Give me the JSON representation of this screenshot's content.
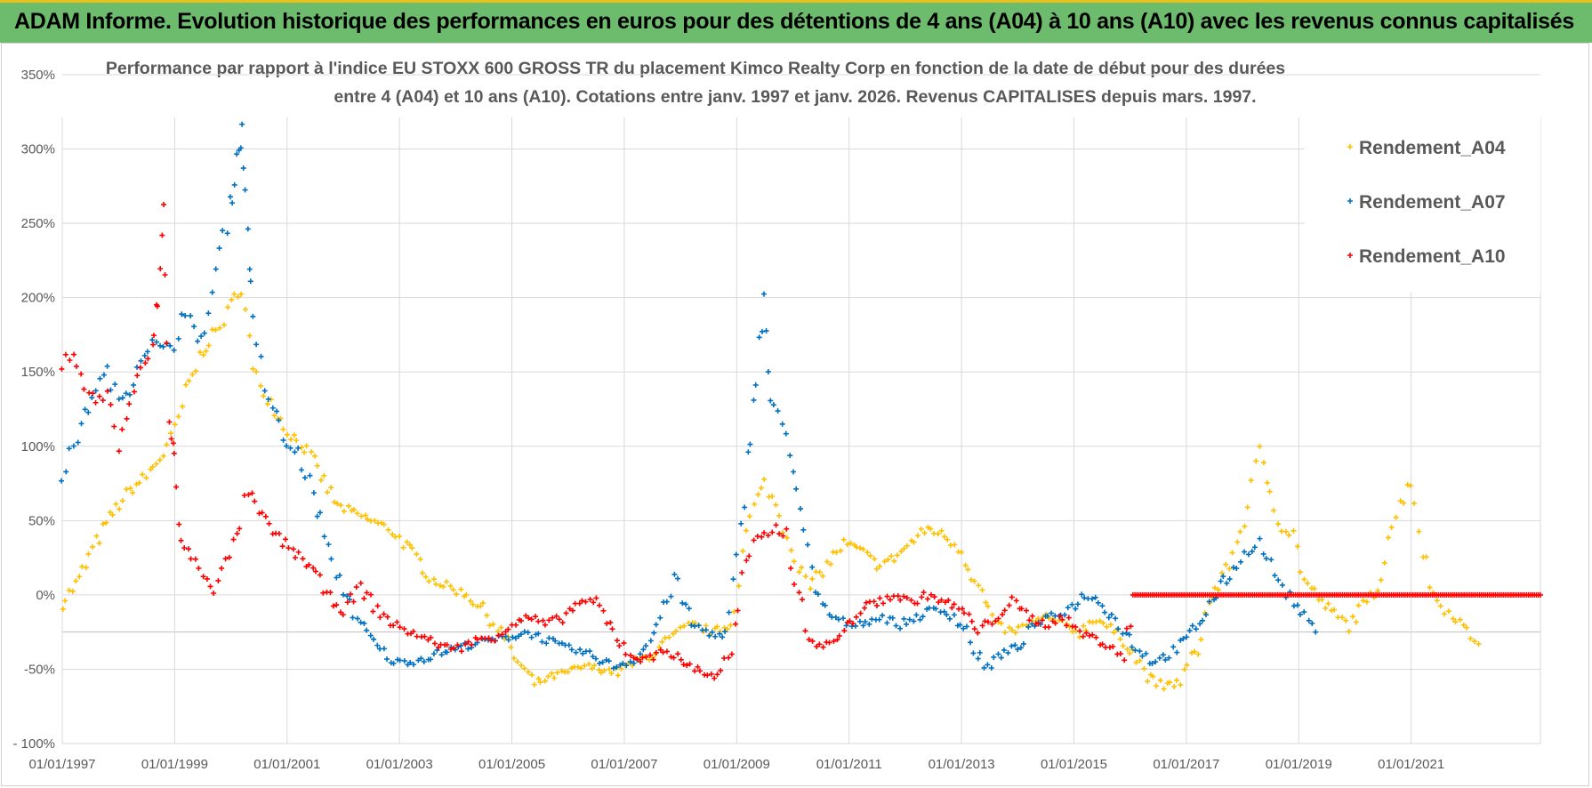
{
  "banner": {
    "title": "ADAM Informe. Evolution historique des performances en euros pour des détentions de 4 ans (A04) à 10 ans (A10) avec les revenus connus capitalisés"
  },
  "colors": {
    "banner_bg": "#6dbb6d",
    "banner_accent": "#e8c21a",
    "A04": "#FFC000",
    "A07": "#0070C0",
    "A10": "#FF0000",
    "grid": "#d9d9d9"
  },
  "chart_data": {
    "type": "scatter",
    "title_lines": [
      "Performance par rapport à l'indice EU STOXX 600 GROSS TR  du placement Kimco Realty Corp en fonction de la date de début pour des durées",
      "entre 4 (A04) et 10 ans (A10). Cotations entre janv. 1997 et janv. 2026. Revenus CAPITALISES depuis mars. 1997."
    ],
    "xlabel": "",
    "ylabel": "",
    "xlim": [
      1997.0,
      2023.3
    ],
    "ylim": [
      -100,
      350
    ],
    "y_ticks": [
      -100,
      -50,
      0,
      50,
      100,
      150,
      200,
      250,
      300,
      350
    ],
    "y_tick_labels": [
      "- 100%",
      "-50%",
      "0%",
      "50%",
      "100%",
      "150%",
      "200%",
      "250%",
      "300%",
      "350%"
    ],
    "x_ticks": [
      1997,
      1999,
      2001,
      2003,
      2005,
      2007,
      2009,
      2011,
      2013,
      2015,
      2017,
      2019,
      2021
    ],
    "x_tick_labels": [
      "01/01/1997",
      "01/01/1999",
      "01/01/2001",
      "01/01/2003",
      "01/01/2005",
      "01/01/2007",
      "01/01/2009",
      "01/01/2011",
      "01/01/2013",
      "01/01/2015",
      "01/01/2017",
      "01/01/2019",
      "01/01/2021"
    ],
    "legend_position": "top-right",
    "series": [
      {
        "name": "Rendement_A04",
        "color": "#FFC000",
        "points": [
          [
            1997.0,
            -5
          ],
          [
            1997.3,
            10
          ],
          [
            1997.6,
            35
          ],
          [
            1997.9,
            55
          ],
          [
            1998.2,
            70
          ],
          [
            1998.5,
            80
          ],
          [
            1998.8,
            95
          ],
          [
            1999.0,
            110
          ],
          [
            1999.2,
            135
          ],
          [
            1999.5,
            165
          ],
          [
            1999.8,
            180
          ],
          [
            2000.0,
            195
          ],
          [
            2000.2,
            210
          ],
          [
            2000.4,
            150
          ],
          [
            2000.7,
            130
          ],
          [
            2001.0,
            110
          ],
          [
            2001.3,
            100
          ],
          [
            2001.6,
            80
          ],
          [
            2001.9,
            60
          ],
          [
            2002.2,
            55
          ],
          [
            2002.5,
            50
          ],
          [
            2002.8,
            45
          ],
          [
            2003.0,
            38
          ],
          [
            2003.3,
            25
          ],
          [
            2003.6,
            10
          ],
          [
            2003.9,
            5
          ],
          [
            2004.2,
            0
          ],
          [
            2004.5,
            -10
          ],
          [
            2004.8,
            -25
          ],
          [
            2005.1,
            -45
          ],
          [
            2005.4,
            -60
          ],
          [
            2005.7,
            -55
          ],
          [
            2006.0,
            -52
          ],
          [
            2006.3,
            -48
          ],
          [
            2006.6,
            -50
          ],
          [
            2006.9,
            -52
          ],
          [
            2007.2,
            -45
          ],
          [
            2007.5,
            -40
          ],
          [
            2007.8,
            -30
          ],
          [
            2008.2,
            -20
          ],
          [
            2008.6,
            -25
          ],
          [
            2008.9,
            -20
          ],
          [
            2009.1,
            30
          ],
          [
            2009.3,
            60
          ],
          [
            2009.5,
            75
          ],
          [
            2009.7,
            60
          ],
          [
            2009.9,
            40
          ],
          [
            2010.1,
            20
          ],
          [
            2010.3,
            5
          ],
          [
            2010.6,
            20
          ],
          [
            2010.9,
            35
          ],
          [
            2011.2,
            30
          ],
          [
            2011.5,
            20
          ],
          [
            2011.8,
            25
          ],
          [
            2012.1,
            35
          ],
          [
            2012.4,
            45
          ],
          [
            2012.7,
            40
          ],
          [
            2013.0,
            30
          ],
          [
            2013.3,
            5
          ],
          [
            2013.6,
            -20
          ],
          [
            2013.9,
            -25
          ],
          [
            2014.2,
            -20
          ],
          [
            2014.5,
            -15
          ],
          [
            2014.8,
            -20
          ],
          [
            2015.1,
            -25
          ],
          [
            2015.4,
            -15
          ],
          [
            2015.7,
            -25
          ],
          [
            2016.0,
            -35
          ],
          [
            2016.3,
            -55
          ],
          [
            2016.6,
            -62
          ],
          [
            2016.9,
            -58
          ],
          [
            2017.2,
            -35
          ],
          [
            2017.4,
            -5
          ],
          [
            2017.7,
            15
          ],
          [
            2017.9,
            35
          ],
          [
            2018.1,
            60
          ],
          [
            2018.3,
            95
          ],
          [
            2018.5,
            70
          ],
          [
            2018.7,
            45
          ],
          [
            2018.9,
            40
          ],
          [
            2019.1,
            10
          ],
          [
            2019.4,
            -5
          ],
          [
            2019.7,
            -15
          ],
          [
            2019.9,
            -20
          ],
          [
            2020.2,
            -5
          ],
          [
            2020.4,
            5
          ],
          [
            2020.6,
            40
          ],
          [
            2020.8,
            60
          ],
          [
            2021.0,
            80
          ],
          [
            2021.2,
            30
          ],
          [
            2021.4,
            0
          ],
          [
            2021.6,
            -10
          ],
          [
            2021.8,
            -15
          ],
          [
            2022.0,
            -25
          ],
          [
            2022.2,
            -33
          ]
        ]
      },
      {
        "name": "Rendement_A07",
        "color": "#0070C0",
        "points": [
          [
            1997.0,
            80
          ],
          [
            1997.2,
            100
          ],
          [
            1997.4,
            120
          ],
          [
            1997.6,
            140
          ],
          [
            1997.8,
            150
          ],
          [
            1998.0,
            130
          ],
          [
            1998.2,
            140
          ],
          [
            1998.4,
            160
          ],
          [
            1998.6,
            170
          ],
          [
            1998.8,
            165
          ],
          [
            1999.0,
            170
          ],
          [
            1999.2,
            195
          ],
          [
            1999.4,
            165
          ],
          [
            1999.6,
            190
          ],
          [
            1999.8,
            230
          ],
          [
            2000.0,
            260
          ],
          [
            2000.1,
            295
          ],
          [
            2000.2,
            310
          ],
          [
            2000.3,
            250
          ],
          [
            2000.4,
            180
          ],
          [
            2000.6,
            140
          ],
          [
            2000.8,
            120
          ],
          [
            2001.0,
            100
          ],
          [
            2001.2,
            95
          ],
          [
            2001.4,
            75
          ],
          [
            2001.6,
            50
          ],
          [
            2001.8,
            20
          ],
          [
            2002.0,
            5
          ],
          [
            2002.3,
            -20
          ],
          [
            2002.6,
            -35
          ],
          [
            2002.9,
            -45
          ],
          [
            2003.2,
            -45
          ],
          [
            2003.5,
            -42
          ],
          [
            2003.8,
            -38
          ],
          [
            2004.1,
            -35
          ],
          [
            2004.4,
            -32
          ],
          [
            2004.7,
            -30
          ],
          [
            2005.0,
            -28
          ],
          [
            2005.3,
            -25
          ],
          [
            2005.6,
            -30
          ],
          [
            2005.9,
            -35
          ],
          [
            2006.2,
            -38
          ],
          [
            2006.5,
            -42
          ],
          [
            2006.8,
            -48
          ],
          [
            2007.1,
            -45
          ],
          [
            2007.4,
            -35
          ],
          [
            2007.7,
            -10
          ],
          [
            2007.9,
            10
          ],
          [
            2008.2,
            -20
          ],
          [
            2008.5,
            -25
          ],
          [
            2008.8,
            -30
          ],
          [
            2009.0,
            20
          ],
          [
            2009.2,
            90
          ],
          [
            2009.35,
            150
          ],
          [
            2009.5,
            200
          ],
          [
            2009.6,
            130
          ],
          [
            2009.8,
            115
          ],
          [
            2010.0,
            90
          ],
          [
            2010.2,
            40
          ],
          [
            2010.4,
            0
          ],
          [
            2010.7,
            -15
          ],
          [
            2011.0,
            -20
          ],
          [
            2011.3,
            -18
          ],
          [
            2011.6,
            -15
          ],
          [
            2011.9,
            -20
          ],
          [
            2012.2,
            -15
          ],
          [
            2012.5,
            -10
          ],
          [
            2012.8,
            -12
          ],
          [
            2013.1,
            -25
          ],
          [
            2013.4,
            -50
          ],
          [
            2013.7,
            -40
          ],
          [
            2014.0,
            -35
          ],
          [
            2014.3,
            -20
          ],
          [
            2014.6,
            -15
          ],
          [
            2014.9,
            -10
          ],
          [
            2015.2,
            0
          ],
          [
            2015.5,
            -5
          ],
          [
            2015.8,
            -20
          ],
          [
            2016.1,
            -35
          ],
          [
            2016.4,
            -45
          ],
          [
            2016.7,
            -40
          ],
          [
            2017.0,
            -30
          ],
          [
            2017.3,
            -15
          ],
          [
            2017.6,
            5
          ],
          [
            2017.9,
            20
          ],
          [
            2018.1,
            30
          ],
          [
            2018.3,
            35
          ],
          [
            2018.5,
            20
          ],
          [
            2018.7,
            5
          ],
          [
            2018.9,
            -5
          ],
          [
            2019.1,
            -15
          ],
          [
            2019.3,
            -25
          ]
        ]
      },
      {
        "name": "Rendement_A10",
        "color": "#FF0000",
        "points": [
          [
            1997.0,
            155
          ],
          [
            1997.2,
            165
          ],
          [
            1997.4,
            140
          ],
          [
            1997.6,
            130
          ],
          [
            1997.8,
            135
          ],
          [
            1998.0,
            100
          ],
          [
            1998.2,
            130
          ],
          [
            1998.4,
            150
          ],
          [
            1998.6,
            165
          ],
          [
            1998.7,
            200
          ],
          [
            1998.8,
            260
          ],
          [
            1998.9,
            120
          ],
          [
            1999.0,
            90
          ],
          [
            1999.1,
            35
          ],
          [
            1999.3,
            25
          ],
          [
            1999.5,
            15
          ],
          [
            1999.7,
            5
          ],
          [
            1999.9,
            20
          ],
          [
            2000.1,
            40
          ],
          [
            2000.3,
            70
          ],
          [
            2000.5,
            55
          ],
          [
            2000.8,
            40
          ],
          [
            2001.1,
            30
          ],
          [
            2001.4,
            20
          ],
          [
            2001.7,
            0
          ],
          [
            2002.0,
            -10
          ],
          [
            2002.3,
            5
          ],
          [
            2002.6,
            -10
          ],
          [
            2002.9,
            -20
          ],
          [
            2003.2,
            -25
          ],
          [
            2003.5,
            -30
          ],
          [
            2003.8,
            -35
          ],
          [
            2004.1,
            -35
          ],
          [
            2004.4,
            -30
          ],
          [
            2004.7,
            -28
          ],
          [
            2005.0,
            -20
          ],
          [
            2005.3,
            -15
          ],
          [
            2005.6,
            -20
          ],
          [
            2005.9,
            -15
          ],
          [
            2006.2,
            -5
          ],
          [
            2006.5,
            -5
          ],
          [
            2006.8,
            -25
          ],
          [
            2007.1,
            -40
          ],
          [
            2007.4,
            -45
          ],
          [
            2007.7,
            -35
          ],
          [
            2008.0,
            -45
          ],
          [
            2008.3,
            -50
          ],
          [
            2008.6,
            -55
          ],
          [
            2008.9,
            -40
          ],
          [
            2009.1,
            10
          ],
          [
            2009.3,
            35
          ],
          [
            2009.5,
            40
          ],
          [
            2009.7,
            45
          ],
          [
            2009.9,
            40
          ],
          [
            2010.1,
            0
          ],
          [
            2010.3,
            -30
          ],
          [
            2010.6,
            -35
          ],
          [
            2010.9,
            -25
          ],
          [
            2011.2,
            -10
          ],
          [
            2011.5,
            -5
          ],
          [
            2011.8,
            0
          ],
          [
            2012.1,
            -5
          ],
          [
            2012.4,
            0
          ],
          [
            2012.7,
            -5
          ],
          [
            2013.0,
            -10
          ],
          [
            2013.3,
            -25
          ],
          [
            2013.6,
            -15
          ],
          [
            2013.9,
            -5
          ],
          [
            2014.2,
            -15
          ],
          [
            2014.5,
            -20
          ],
          [
            2014.8,
            -15
          ],
          [
            2015.1,
            -25
          ],
          [
            2015.4,
            -30
          ],
          [
            2015.7,
            -35
          ],
          [
            2015.9,
            -45
          ],
          [
            2016.05,
            0
          ],
          [
            2023.3,
            0
          ]
        ]
      }
    ]
  }
}
